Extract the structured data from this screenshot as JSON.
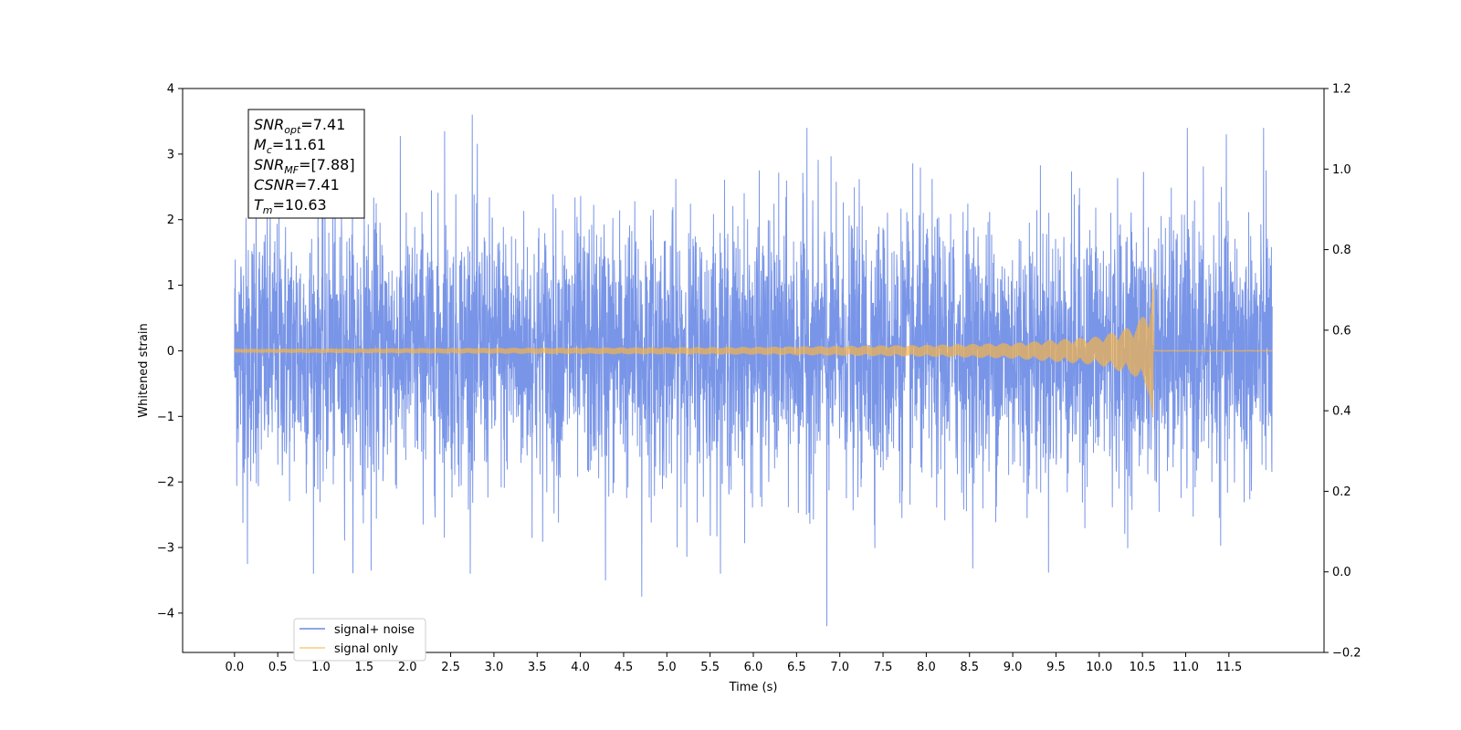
{
  "chart_data": {
    "type": "line",
    "title": "",
    "xlabel": "Time (s)",
    "ylabel": "Whitened strain",
    "xlim": [
      -0.6,
      12.6
    ],
    "ylim": [
      -4.6,
      4.0
    ],
    "y2lim": [
      -0.2,
      1.2
    ],
    "x_ticks": [
      0.0,
      0.5,
      1.0,
      1.5,
      2.0,
      2.5,
      3.0,
      3.5,
      4.0,
      4.5,
      5.0,
      5.5,
      6.0,
      6.5,
      7.0,
      7.5,
      8.0,
      8.5,
      9.0,
      9.5,
      10.0,
      10.5,
      11.0,
      11.5
    ],
    "x_tick_labels": [
      "0.0",
      "0.5",
      "1.0",
      "1.5",
      "2.0",
      "2.5",
      "3.0",
      "3.5",
      "4.0",
      "4.5",
      "5.0",
      "5.5",
      "6.0",
      "6.5",
      "7.0",
      "7.5",
      "8.0",
      "8.5",
      "9.0",
      "9.5",
      "10.0",
      "10.5",
      "11.0",
      "11.5"
    ],
    "y_ticks": [
      4,
      3,
      2,
      1,
      0,
      -1,
      -2,
      -3,
      -4
    ],
    "y_tick_labels": [
      "4",
      "3",
      "2",
      "1",
      "0",
      "−1",
      "−2",
      "−3",
      "−4"
    ],
    "y2_ticks": [
      1.2,
      1.0,
      0.8,
      0.6,
      0.4,
      0.2,
      0.0,
      -0.2
    ],
    "y2_tick_labels": [
      "1.2",
      "1.0",
      "0.8",
      "0.6",
      "0.4",
      "0.2",
      "0.0",
      "−0.2"
    ],
    "grid": false,
    "legend_position": "lower-left",
    "series": [
      {
        "name": "signal+ noise",
        "color": "#6a89e4",
        "x_range": [
          0.0,
          12.0
        ],
        "approx_std": 1.0,
        "notable_peaks": [
          {
            "x": 0.15,
            "y": -3.25
          },
          {
            "x": 0.25,
            "y": 2.9
          },
          {
            "x": 1.58,
            "y": -3.35
          },
          {
            "x": 2.75,
            "y": 3.6
          },
          {
            "x": 2.43,
            "y": 3.35
          },
          {
            "x": 4.29,
            "y": -3.5
          },
          {
            "x": 4.71,
            "y": -3.75
          },
          {
            "x": 6.85,
            "y": -4.2
          },
          {
            "x": 6.62,
            "y": 3.4
          },
          {
            "x": 11.93,
            "y": 2.75
          }
        ]
      },
      {
        "name": "signal only",
        "color": "#f5b54a",
        "x_range": [
          0.0,
          12.0
        ],
        "merger_time": 10.63,
        "peak_amplitude_high": 1.35,
        "peak_amplitude_low": -1.0,
        "envelope_near_merger": [
          {
            "x": 0.0,
            "amp": 0.03
          },
          {
            "x": 6.0,
            "amp": 0.06
          },
          {
            "x": 8.0,
            "amp": 0.09
          },
          {
            "x": 9.0,
            "amp": 0.12
          },
          {
            "x": 10.0,
            "amp": 0.22
          },
          {
            "x": 10.4,
            "amp": 0.38
          },
          {
            "x": 10.55,
            "amp": 0.6
          }
        ]
      }
    ],
    "annotation": {
      "lines": [
        {
          "base": "SNR",
          "sub": "opt",
          "value": "=7.41"
        },
        {
          "base": "M",
          "sub": "c",
          "value": "=11.61"
        },
        {
          "base": "SNR",
          "sub": "MF",
          "value": "=[7.88]"
        },
        {
          "base": "CSNR",
          "sub": "",
          "value": "=7.41"
        },
        {
          "base": "T",
          "sub": "m",
          "value": "=10.63"
        }
      ]
    }
  }
}
